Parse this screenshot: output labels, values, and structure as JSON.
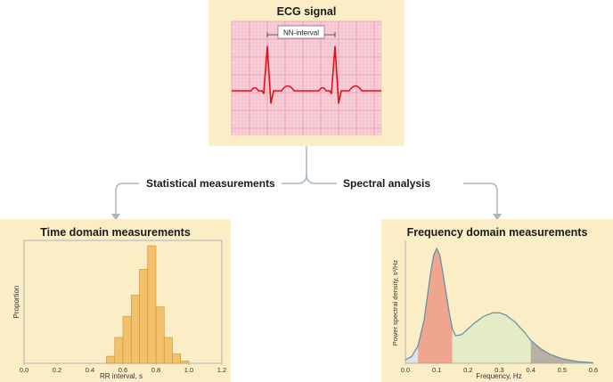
{
  "ecg": {
    "title": "ECG signal",
    "interval_label": "NN-interval",
    "colors": {
      "grid_bg": "#f7cfd8",
      "grid_minor": "#f2a8b9",
      "grid_major": "#e47d96",
      "trace": "#e0101a"
    }
  },
  "flow": {
    "left_label": "Statistical measurements",
    "right_label": "Spectral analysis",
    "connector_color": "#a9b7c1"
  },
  "time_panel": {
    "title": "Time domain measurements",
    "chart_data": {
      "type": "bar",
      "xlabel": "RR interval, s",
      "ylabel": "Proportion",
      "xlim": [
        0.0,
        1.2
      ],
      "xticks": [
        "0.0",
        "0.2",
        "0.4",
        "0.6",
        "0.8",
        "1.0",
        "1.2"
      ],
      "bin_width": 0.05,
      "bins": [
        {
          "x": 0.5,
          "value": 0.06
        },
        {
          "x": 0.55,
          "value": 0.22
        },
        {
          "x": 0.6,
          "value": 0.4
        },
        {
          "x": 0.65,
          "value": 0.58
        },
        {
          "x": 0.7,
          "value": 0.8
        },
        {
          "x": 0.75,
          "value": 1.0
        },
        {
          "x": 0.8,
          "value": 0.48
        },
        {
          "x": 0.85,
          "value": 0.22
        },
        {
          "x": 0.9,
          "value": 0.08
        },
        {
          "x": 0.95,
          "value": 0.02
        }
      ],
      "colors": {
        "bar": "#f3c06b",
        "bar_edge": "#c9913a"
      }
    }
  },
  "freq_panel": {
    "title": "Frequency domain measurements",
    "chart_data": {
      "type": "area",
      "xlabel": "Frequency, Hz",
      "ylabel": "Power spectral density, s²/Hz",
      "xlim": [
        0.0,
        0.6
      ],
      "xticks": [
        "0.0",
        "0.1",
        "0.2",
        "0.3",
        "0.4",
        "0.5",
        "0.6"
      ],
      "curve": {
        "x": [
          0.0,
          0.02,
          0.04,
          0.06,
          0.08,
          0.09,
          0.1,
          0.11,
          0.12,
          0.14,
          0.15,
          0.16,
          0.18,
          0.2,
          0.22,
          0.25,
          0.28,
          0.3,
          0.32,
          0.35,
          0.38,
          0.4,
          0.43,
          0.46,
          0.5,
          0.55,
          0.6
        ],
        "y": [
          0.03,
          0.06,
          0.15,
          0.38,
          0.78,
          0.94,
          1.0,
          0.94,
          0.78,
          0.44,
          0.3,
          0.24,
          0.25,
          0.3,
          0.35,
          0.41,
          0.44,
          0.44,
          0.42,
          0.36,
          0.27,
          0.2,
          0.13,
          0.08,
          0.04,
          0.015,
          0.005
        ]
      },
      "bands": [
        {
          "from": 0.0,
          "to": 0.04,
          "color": "#dfe2ea"
        },
        {
          "from": 0.04,
          "to": 0.15,
          "color": "#f0a58e"
        },
        {
          "from": 0.15,
          "to": 0.4,
          "color": "#e3ecc6"
        },
        {
          "from": 0.4,
          "to": 0.6,
          "color": "#b9b0a3"
        }
      ],
      "colors": {
        "line": "#5f8fa3"
      }
    }
  }
}
